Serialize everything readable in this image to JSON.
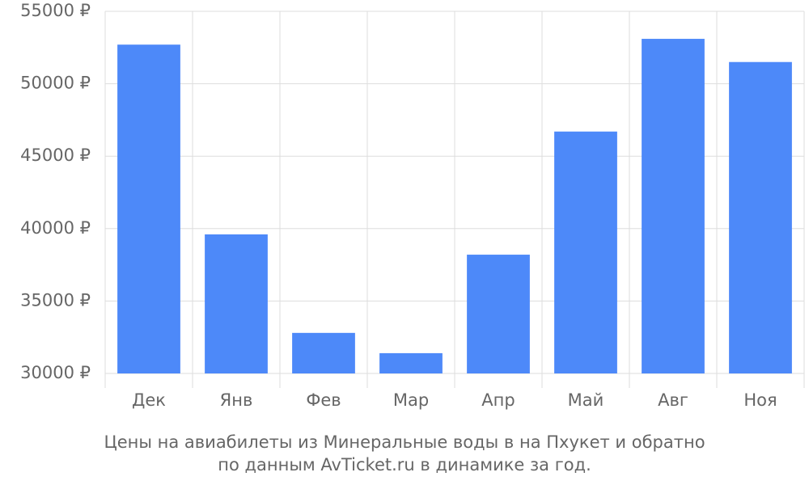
{
  "chart_data": {
    "type": "bar",
    "caption": [
      "Цены на авиабилеты из Минеральные воды в на Пхукет и обратно",
      "по данным AvTicket.ru в динамике за год."
    ],
    "categories": [
      "Дек",
      "Янв",
      "Фев",
      "Мар",
      "Апр",
      "Май",
      "Авг",
      "Ноя"
    ],
    "values": [
      52700,
      39600,
      32800,
      31400,
      38200,
      46700,
      53100,
      51500
    ],
    "color": "#4d89f9",
    "ylim": [
      30000,
      55000
    ],
    "yticks": [
      {
        "value": 30000,
        "label": "30000 ₽"
      },
      {
        "value": 35000,
        "label": "35000 ₽"
      },
      {
        "value": 40000,
        "label": "40000 ₽"
      },
      {
        "value": 45000,
        "label": "45000 ₽"
      },
      {
        "value": 50000,
        "label": "50000 ₽"
      },
      {
        "value": 55000,
        "label": "55000 ₽"
      }
    ],
    "grid": true
  }
}
